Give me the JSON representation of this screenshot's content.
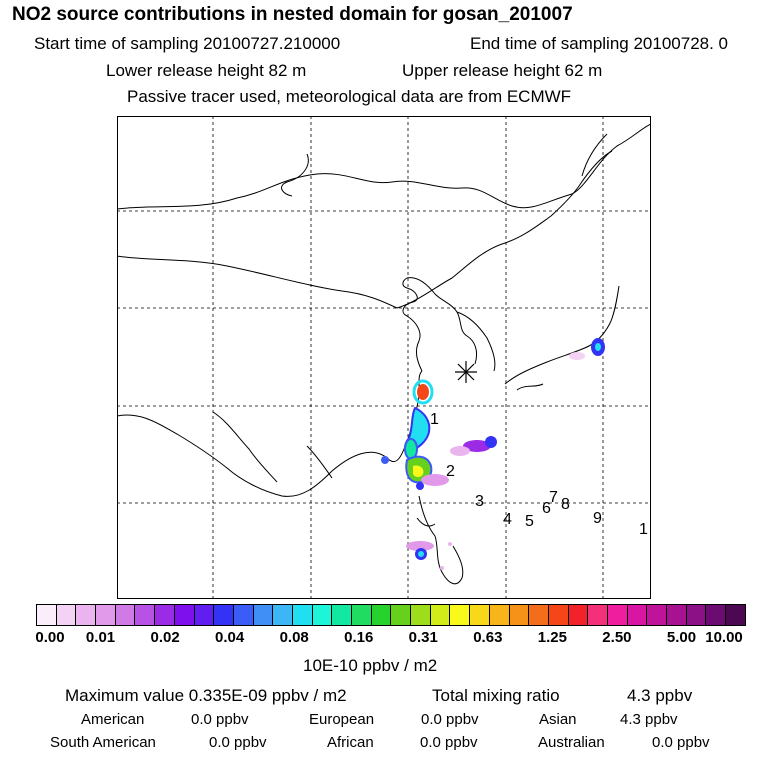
{
  "header": {
    "title": "NO2 source contributions in nested domain for gosan_201007",
    "start": "Start time of sampling 20100727.210000",
    "end": "End time of sampling 20100728.     0",
    "lower": "Lower release height   82 m",
    "upper": "Upper release height   62 m",
    "tracer": "Passive tracer used, meteorological data are from ECMWF"
  },
  "map": {
    "labels": [
      "1",
      "2",
      "3",
      "4",
      "5",
      "6",
      "7",
      "8",
      "9",
      "1"
    ]
  },
  "colorbar": {
    "colors": [
      "#fbeefb",
      "#f4d2f4",
      "#eab4ef",
      "#e09ae9",
      "#cf7ae6",
      "#b752e4",
      "#9c2be6",
      "#7f10ee",
      "#601ff0",
      "#3333f5",
      "#3c5cf7",
      "#3f8ff7",
      "#3cb6f5",
      "#21dff0",
      "#1df5d9",
      "#13e8a2",
      "#20dc60",
      "#27d22d",
      "#66d11c",
      "#9edd1c",
      "#d2ec1a",
      "#f9f91a",
      "#f8d919",
      "#f7b51a",
      "#f79219",
      "#f46d1a",
      "#f44618",
      "#f2222b",
      "#f5307a",
      "#ef1e9f",
      "#d915a3",
      "#bf1499",
      "#a81190",
      "#8c1086",
      "#6c0c72",
      "#4c0952"
    ],
    "ticks": [
      "0.00",
      "0.01",
      "0.02",
      "0.04",
      "0.08",
      "0.16",
      "0.31",
      "0.63",
      "1.25",
      "2.50",
      "5.00",
      "10.00"
    ],
    "unit": "10E-10 ppbv / m2"
  },
  "stats": {
    "max": "Maximum value  0.335E-09 ppbv / m2",
    "total_label": "Total mixing ratio",
    "total_value": "4.3 ppbv",
    "american_label": "American",
    "american_value": "0.0 ppbv",
    "european_label": "European",
    "european_value": "0.0 ppbv",
    "asian_label": "Asian",
    "asian_value": "4.3 ppbv",
    "south_american_label": "South American",
    "south_american_value": "0.0 ppbv",
    "african_label": "African",
    "african_value": "0.0 ppbv",
    "australian_label": "Australian",
    "australian_value": "0.0 ppbv"
  }
}
